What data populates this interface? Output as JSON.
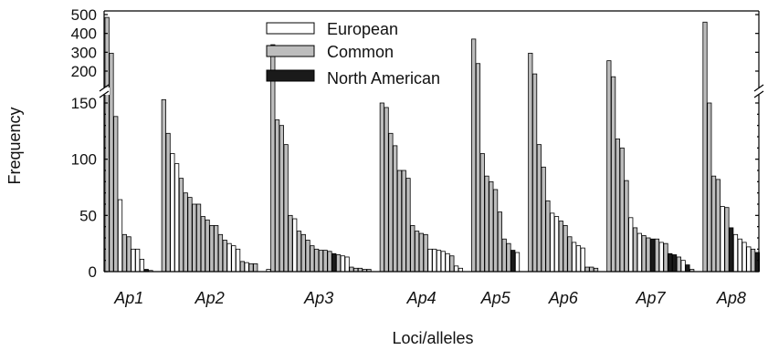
{
  "chart_data": {
    "type": "bar",
    "xlabel": "Loci/alleles",
    "ylabel": "Frequency",
    "axis_break": {
      "lower_range": [
        0,
        155
      ],
      "upper_range": [
        150,
        520
      ]
    },
    "lower_ticks": [
      0,
      50,
      100,
      150
    ],
    "upper_ticks": [
      200,
      300,
      400,
      500
    ],
    "legend": {
      "placement": "top-center",
      "entries": [
        {
          "name": "European",
          "color": "#ffffff"
        },
        {
          "name": "Common",
          "color": "#bdbdbd"
        },
        {
          "name": "North American",
          "color": "#1a1a1a"
        }
      ]
    },
    "loci": [
      {
        "name": "Ap1",
        "label": "Ap1",
        "alleles": [
          {
            "v": 485,
            "c": "common"
          },
          {
            "v": 295,
            "c": "common"
          },
          {
            "v": 138,
            "c": "common"
          },
          {
            "v": 64,
            "c": "european"
          },
          {
            "v": 33,
            "c": "common"
          },
          {
            "v": 31,
            "c": "common"
          },
          {
            "v": 20,
            "c": "european"
          },
          {
            "v": 20,
            "c": "european"
          },
          {
            "v": 11,
            "c": "european"
          },
          {
            "v": 2,
            "c": "northam"
          },
          {
            "v": 1,
            "c": "european"
          }
        ]
      },
      {
        "name": "Ap2",
        "label": "Ap2",
        "alleles": [
          {
            "v": 153,
            "c": "common"
          },
          {
            "v": 123,
            "c": "common"
          },
          {
            "v": 105,
            "c": "european"
          },
          {
            "v": 96,
            "c": "european"
          },
          {
            "v": 83,
            "c": "common"
          },
          {
            "v": 70,
            "c": "common"
          },
          {
            "v": 66,
            "c": "common"
          },
          {
            "v": 60,
            "c": "common"
          },
          {
            "v": 60,
            "c": "common"
          },
          {
            "v": 49,
            "c": "common"
          },
          {
            "v": 46,
            "c": "common"
          },
          {
            "v": 41,
            "c": "common"
          },
          {
            "v": 41,
            "c": "common"
          },
          {
            "v": 33,
            "c": "common"
          },
          {
            "v": 28,
            "c": "common"
          },
          {
            "v": 25,
            "c": "european"
          },
          {
            "v": 23,
            "c": "european"
          },
          {
            "v": 20,
            "c": "european"
          },
          {
            "v": 9,
            "c": "common"
          },
          {
            "v": 8,
            "c": "european"
          },
          {
            "v": 7,
            "c": "common"
          },
          {
            "v": 7,
            "c": "common"
          }
        ]
      },
      {
        "name": "Ap3",
        "label": "Ap3",
        "alleles": [
          {
            "v": 2,
            "c": "european"
          },
          {
            "v": 340,
            "c": "common"
          },
          {
            "v": 135,
            "c": "common"
          },
          {
            "v": 130,
            "c": "common"
          },
          {
            "v": 113,
            "c": "common"
          },
          {
            "v": 50,
            "c": "common"
          },
          {
            "v": 47,
            "c": "european"
          },
          {
            "v": 36,
            "c": "common"
          },
          {
            "v": 33,
            "c": "common"
          },
          {
            "v": 28,
            "c": "common"
          },
          {
            "v": 23,
            "c": "common"
          },
          {
            "v": 20,
            "c": "common"
          },
          {
            "v": 19,
            "c": "common"
          },
          {
            "v": 19,
            "c": "common"
          },
          {
            "v": 18,
            "c": "common"
          },
          {
            "v": 16,
            "c": "northam"
          },
          {
            "v": 15,
            "c": "common"
          },
          {
            "v": 14,
            "c": "european"
          },
          {
            "v": 13,
            "c": "european"
          },
          {
            "v": 4,
            "c": "common"
          },
          {
            "v": 3,
            "c": "common"
          },
          {
            "v": 3,
            "c": "common"
          },
          {
            "v": 2,
            "c": "common"
          },
          {
            "v": 2,
            "c": "common"
          }
        ]
      },
      {
        "name": "Ap4",
        "label": "Ap4",
        "alleles": [
          {
            "v": 150,
            "c": "common"
          },
          {
            "v": 146,
            "c": "common"
          },
          {
            "v": 123,
            "c": "common"
          },
          {
            "v": 112,
            "c": "common"
          },
          {
            "v": 90,
            "c": "common"
          },
          {
            "v": 90,
            "c": "common"
          },
          {
            "v": 83,
            "c": "common"
          },
          {
            "v": 41,
            "c": "common"
          },
          {
            "v": 36,
            "c": "common"
          },
          {
            "v": 34,
            "c": "common"
          },
          {
            "v": 33,
            "c": "common"
          },
          {
            "v": 20,
            "c": "european"
          },
          {
            "v": 20,
            "c": "european"
          },
          {
            "v": 19,
            "c": "european"
          },
          {
            "v": 18,
            "c": "european"
          },
          {
            "v": 16,
            "c": "european"
          },
          {
            "v": 14,
            "c": "common"
          },
          {
            "v": 5,
            "c": "european"
          },
          {
            "v": 3,
            "c": "european"
          }
        ]
      },
      {
        "name": "Ap5",
        "label": "Ap5",
        "alleles": [
          {
            "v": 370,
            "c": "common"
          },
          {
            "v": 240,
            "c": "common"
          },
          {
            "v": 105,
            "c": "common"
          },
          {
            "v": 85,
            "c": "common"
          },
          {
            "v": 80,
            "c": "common"
          },
          {
            "v": 73,
            "c": "common"
          },
          {
            "v": 53,
            "c": "common"
          },
          {
            "v": 29,
            "c": "common"
          },
          {
            "v": 25,
            "c": "common"
          },
          {
            "v": 19,
            "c": "northam"
          },
          {
            "v": 17,
            "c": "european"
          }
        ]
      },
      {
        "name": "Ap6",
        "label": "Ap6",
        "alleles": [
          {
            "v": 295,
            "c": "common"
          },
          {
            "v": 185,
            "c": "common"
          },
          {
            "v": 113,
            "c": "common"
          },
          {
            "v": 93,
            "c": "common"
          },
          {
            "v": 63,
            "c": "common"
          },
          {
            "v": 52,
            "c": "european"
          },
          {
            "v": 49,
            "c": "european"
          },
          {
            "v": 45,
            "c": "common"
          },
          {
            "v": 41,
            "c": "common"
          },
          {
            "v": 31,
            "c": "common"
          },
          {
            "v": 26,
            "c": "european"
          },
          {
            "v": 23,
            "c": "european"
          },
          {
            "v": 21,
            "c": "european"
          },
          {
            "v": 4,
            "c": "common"
          },
          {
            "v": 4,
            "c": "common"
          },
          {
            "v": 3,
            "c": "common"
          }
        ]
      },
      {
        "name": "Ap7",
        "label": "Ap7",
        "alleles": [
          {
            "v": 255,
            "c": "common"
          },
          {
            "v": 170,
            "c": "common"
          },
          {
            "v": 118,
            "c": "common"
          },
          {
            "v": 110,
            "c": "common"
          },
          {
            "v": 81,
            "c": "common"
          },
          {
            "v": 48,
            "c": "european"
          },
          {
            "v": 39,
            "c": "common"
          },
          {
            "v": 34,
            "c": "european"
          },
          {
            "v": 32,
            "c": "common"
          },
          {
            "v": 30,
            "c": "common"
          },
          {
            "v": 29,
            "c": "northam"
          },
          {
            "v": 29,
            "c": "common"
          },
          {
            "v": 26,
            "c": "european"
          },
          {
            "v": 25,
            "c": "common"
          },
          {
            "v": 16,
            "c": "northam"
          },
          {
            "v": 15,
            "c": "northam"
          },
          {
            "v": 13,
            "c": "common"
          },
          {
            "v": 10,
            "c": "european"
          },
          {
            "v": 6,
            "c": "northam"
          },
          {
            "v": 2,
            "c": "common"
          }
        ]
      },
      {
        "name": "Ap8",
        "label": "Ap8",
        "alleles": [
          {
            "v": 460,
            "c": "common"
          },
          {
            "v": 150,
            "c": "common"
          },
          {
            "v": 85,
            "c": "common"
          },
          {
            "v": 82,
            "c": "common"
          },
          {
            "v": 58,
            "c": "european"
          },
          {
            "v": 57,
            "c": "common"
          },
          {
            "v": 39,
            "c": "northam"
          },
          {
            "v": 33,
            "c": "european"
          },
          {
            "v": 29,
            "c": "european"
          },
          {
            "v": 26,
            "c": "european"
          },
          {
            "v": 22,
            "c": "european"
          },
          {
            "v": 20,
            "c": "common"
          },
          {
            "v": 17,
            "c": "northam"
          }
        ]
      }
    ],
    "colors": {
      "european": "#ffffff",
      "common": "#bdbdbd",
      "northam": "#1a1a1a"
    }
  }
}
